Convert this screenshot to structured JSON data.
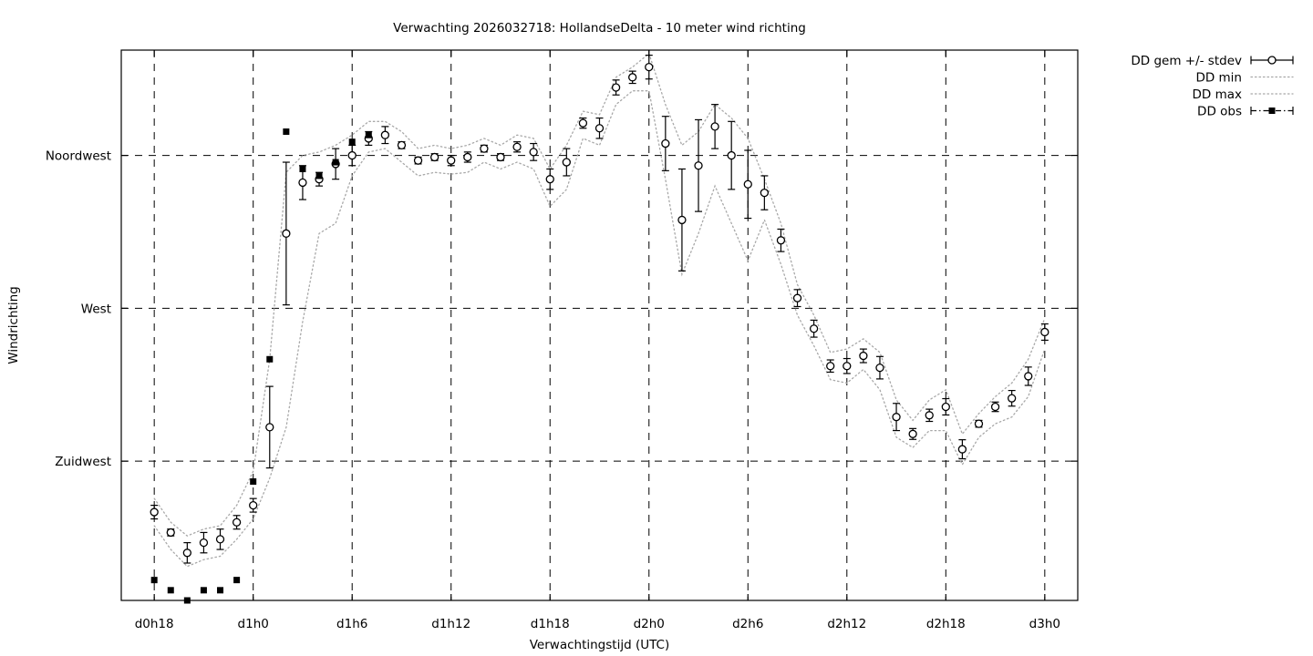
{
  "title": "Verwachting 2026032718: HollandseDelta - 10 meter wind richting",
  "colors": {
    "foreground": "#000000",
    "minmax_line": "#a8a8a8",
    "background": "#ffffff"
  },
  "chart_data": {
    "type": "line",
    "title": "Verwachting 2026032718: HollandseDelta - 10 meter wind richting",
    "xlabel": "Verwachtingstijd (UTC)",
    "ylabel": "Windrichting",
    "xlim": [
      16,
      74
    ],
    "ylim": [
      184,
      346
    ],
    "grid": true,
    "legend_position": "outside-top-right",
    "x_ticks": [
      {
        "t": 18,
        "label": "d0h18"
      },
      {
        "t": 24,
        "label": "d1h0"
      },
      {
        "t": 30,
        "label": "d1h6"
      },
      {
        "t": 36,
        "label": "d1h12"
      },
      {
        "t": 42,
        "label": "d1h18"
      },
      {
        "t": 48,
        "label": "d2h0"
      },
      {
        "t": 54,
        "label": "d2h6"
      },
      {
        "t": 60,
        "label": "d2h12"
      },
      {
        "t": 66,
        "label": "d2h18"
      },
      {
        "t": 72,
        "label": "d3h0"
      }
    ],
    "y_ticks": [
      {
        "v": 315,
        "label": "Noordwest"
      },
      {
        "v": 270,
        "label": "West"
      },
      {
        "v": 225,
        "label": "Zuidwest"
      }
    ],
    "legend": [
      {
        "label": "DD gem +/- stdev",
        "style": "errorbar-circle"
      },
      {
        "label": "DD min",
        "style": "dotted"
      },
      {
        "label": "DD max",
        "style": "dotted"
      },
      {
        "label": "DD obs",
        "style": "dashdot-square"
      }
    ],
    "series": [
      {
        "name": "DD gem +/- stdev",
        "type": "mean",
        "x": [
          18,
          19,
          20,
          21,
          22,
          23,
          24,
          25,
          26,
          27,
          28,
          29,
          30,
          31,
          32,
          33,
          34,
          35,
          36,
          37,
          38,
          39,
          40,
          41,
          42,
          43,
          44,
          45,
          46,
          47,
          48,
          49,
          50,
          51,
          52,
          53,
          54,
          55,
          56,
          57,
          58,
          59,
          60,
          61,
          62,
          63,
          64,
          65,
          66,
          67,
          68,
          69,
          70,
          71,
          72
        ],
        "y": [
          210,
          204,
          198,
          201,
          202,
          207,
          212,
          235,
          292,
          307,
          308,
          312.5,
          315,
          320,
          321,
          318,
          313.5,
          314.5,
          313.5,
          314.5,
          317,
          314.5,
          317.5,
          316,
          308,
          313,
          324.5,
          323,
          335,
          338,
          341,
          318.5,
          296,
          312,
          323.5,
          315,
          306.5,
          304,
          290,
          273,
          264,
          253,
          253,
          256,
          252.5,
          238,
          233,
          238.5,
          241,
          228.5,
          236,
          241,
          243.5,
          250,
          263
        ],
        "stdev": [
          2,
          1,
          3,
          3,
          3,
          2,
          2,
          12,
          21,
          5,
          2,
          4.5,
          3,
          2,
          2.5,
          1,
          1,
          1,
          1.5,
          1.5,
          1,
          1,
          1.5,
          2.5,
          3,
          4,
          1.5,
          3,
          2.2,
          1.8,
          3.5,
          8,
          15,
          13.5,
          6.5,
          10,
          10,
          5,
          3.3,
          2.5,
          2.5,
          1.8,
          2.2,
          2,
          3.3,
          4,
          1.6,
          1.8,
          2.4,
          2.8,
          1,
          1.4,
          2.3,
          2.7,
          2.4
        ]
      },
      {
        "name": "DD min",
        "type": "minmax",
        "x": [
          18,
          19,
          20,
          21,
          22,
          23,
          24,
          25,
          26,
          27,
          28,
          29,
          30,
          31,
          32,
          33,
          34,
          35,
          36,
          37,
          38,
          39,
          40,
          41,
          42,
          43,
          44,
          45,
          46,
          47,
          48,
          49,
          50,
          51,
          52,
          53,
          54,
          55,
          56,
          57,
          58,
          59,
          60,
          61,
          62,
          63,
          64,
          65,
          66,
          67,
          68,
          69,
          70,
          71,
          72
        ],
        "y": [
          206,
          199,
          194,
          196,
          197,
          202,
          208,
          220,
          235,
          266,
          292,
          295,
          309,
          316,
          317,
          313,
          309,
          310,
          309.5,
          310,
          313,
          311,
          313,
          311,
          300,
          305,
          320,
          318,
          330,
          334,
          334,
          308,
          280,
          292,
          306,
          295,
          284,
          296,
          283,
          268,
          259,
          249,
          248,
          252,
          246,
          232,
          229,
          234,
          234,
          224,
          232,
          236,
          238,
          244,
          258
        ]
      },
      {
        "name": "DD max",
        "type": "minmax",
        "x": [
          18,
          19,
          20,
          21,
          22,
          23,
          24,
          25,
          26,
          27,
          28,
          29,
          30,
          31,
          32,
          33,
          34,
          35,
          36,
          37,
          38,
          39,
          40,
          41,
          42,
          43,
          44,
          45,
          46,
          47,
          48,
          49,
          50,
          51,
          52,
          53,
          54,
          55,
          56,
          57,
          58,
          59,
          60,
          61,
          62,
          63,
          64,
          65,
          66,
          67,
          68,
          69,
          70,
          71,
          72
        ],
        "y": [
          214,
          207,
          203,
          205,
          206,
          212,
          222,
          255,
          310,
          315,
          316,
          318,
          321,
          325,
          325,
          322,
          317,
          318,
          317,
          318,
          320,
          318,
          321,
          320,
          311,
          318,
          328,
          327,
          338,
          341,
          345,
          330,
          318,
          322,
          330,
          326,
          320,
          308,
          295,
          277,
          268,
          257,
          258,
          261,
          257,
          243,
          237,
          243,
          246,
          233,
          239,
          244,
          248,
          255,
          267
        ]
      },
      {
        "name": "DD obs",
        "type": "obs",
        "x": [
          18,
          19,
          20,
          21,
          22,
          23,
          24,
          25,
          26,
          27,
          28,
          29,
          30,
          31
        ],
        "y": [
          190,
          187,
          184,
          187,
          187,
          190,
          219,
          255,
          322,
          311,
          309,
          313,
          319,
          321
        ]
      }
    ]
  }
}
